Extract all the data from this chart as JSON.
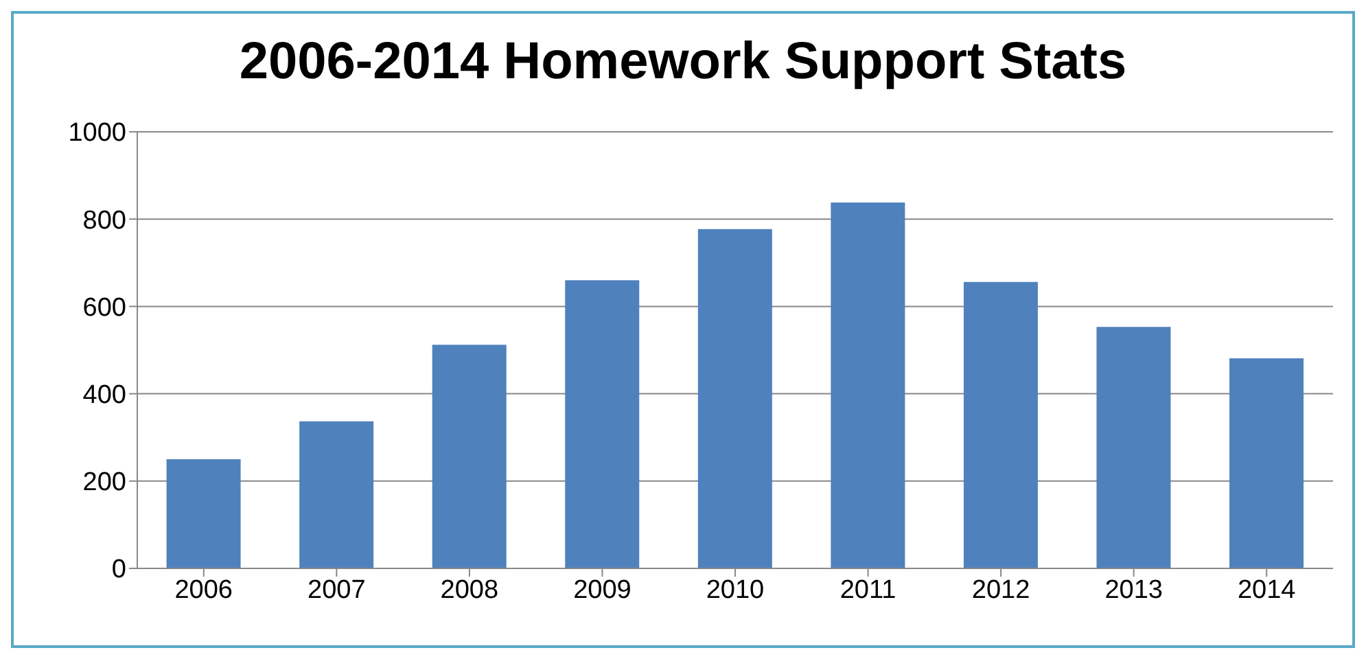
{
  "chart_data": {
    "type": "bar",
    "title": "2006-2014 Homework Support Stats",
    "categories": [
      "2006",
      "2007",
      "2008",
      "2009",
      "2010",
      "2011",
      "2012",
      "2013",
      "2014"
    ],
    "values": [
      250,
      337,
      512,
      660,
      777,
      838,
      656,
      553,
      481
    ],
    "color": "#4f81bd",
    "ylim": [
      0,
      1000
    ],
    "yticks": [
      0,
      200,
      400,
      600,
      800,
      1000
    ],
    "grid": "y",
    "legend": false
  }
}
